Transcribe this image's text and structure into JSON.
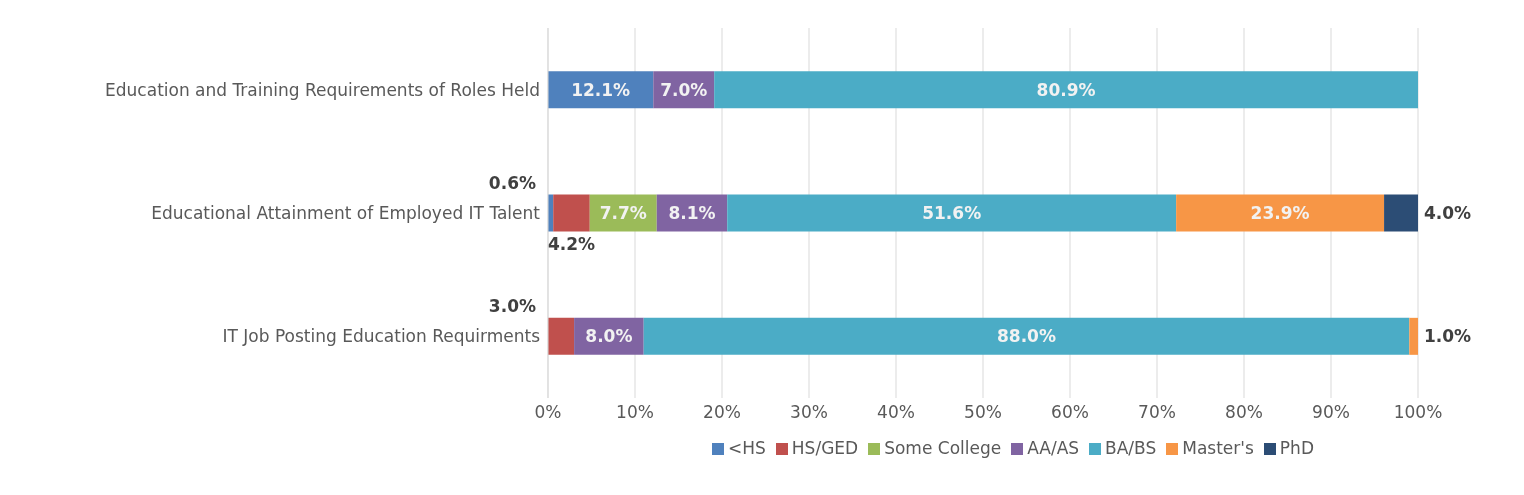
{
  "chart_data": {
    "type": "bar",
    "orientation": "horizontal",
    "stacked": true,
    "categories": [
      "Education and Training Requirements of Roles Held",
      "Educational Attainment of Employed IT Talent",
      "IT Job Posting Education Requirments"
    ],
    "series": [
      {
        "name": "<HS",
        "color": "#4f81bd",
        "values": [
          12.1,
          0.6,
          null
        ],
        "value_labels": [
          "12.1%",
          "0.6%",
          null
        ]
      },
      {
        "name": "HS/GED",
        "color": "#c0504d",
        "values": [
          null,
          4.2,
          3.0
        ],
        "value_labels": [
          null,
          "4.2%",
          "3.0%"
        ]
      },
      {
        "name": "Some College",
        "color": "#9bbb59",
        "values": [
          null,
          7.7,
          null
        ],
        "value_labels": [
          null,
          "7.7%",
          null
        ]
      },
      {
        "name": "AA/AS",
        "color": "#8064a2",
        "values": [
          7.0,
          8.1,
          8.0
        ],
        "value_labels": [
          "7.0%",
          "8.1%",
          "8.0%"
        ]
      },
      {
        "name": "BA/BS",
        "color": "#4bacc6",
        "values": [
          80.9,
          51.6,
          88.0
        ],
        "value_labels": [
          "80.9%",
          "51.6%",
          "88.0%"
        ]
      },
      {
        "name": "Master's",
        "color": "#f79646",
        "values": [
          null,
          23.9,
          1.0
        ],
        "value_labels": [
          null,
          "23.9%",
          "1.0%"
        ]
      },
      {
        "name": "PhD",
        "color": "#2c4d75",
        "values": [
          null,
          4.0,
          null
        ],
        "value_labels": [
          null,
          "4.0%",
          null
        ]
      }
    ],
    "xlim": [
      0,
      100
    ],
    "xticks": [
      {
        "value": 0,
        "label": "0%"
      },
      {
        "value": 10,
        "label": "10%"
      },
      {
        "value": 20,
        "label": "20%"
      },
      {
        "value": 30,
        "label": "30%"
      },
      {
        "value": 40,
        "label": "40%"
      },
      {
        "value": 50,
        "label": "50%"
      },
      {
        "value": 60,
        "label": "60%"
      },
      {
        "value": 70,
        "label": "70%"
      },
      {
        "value": 80,
        "label": "80%"
      },
      {
        "value": 90,
        "label": "90%"
      },
      {
        "value": 100,
        "label": "100%"
      }
    ],
    "grid": "x",
    "legend": "bottom"
  }
}
